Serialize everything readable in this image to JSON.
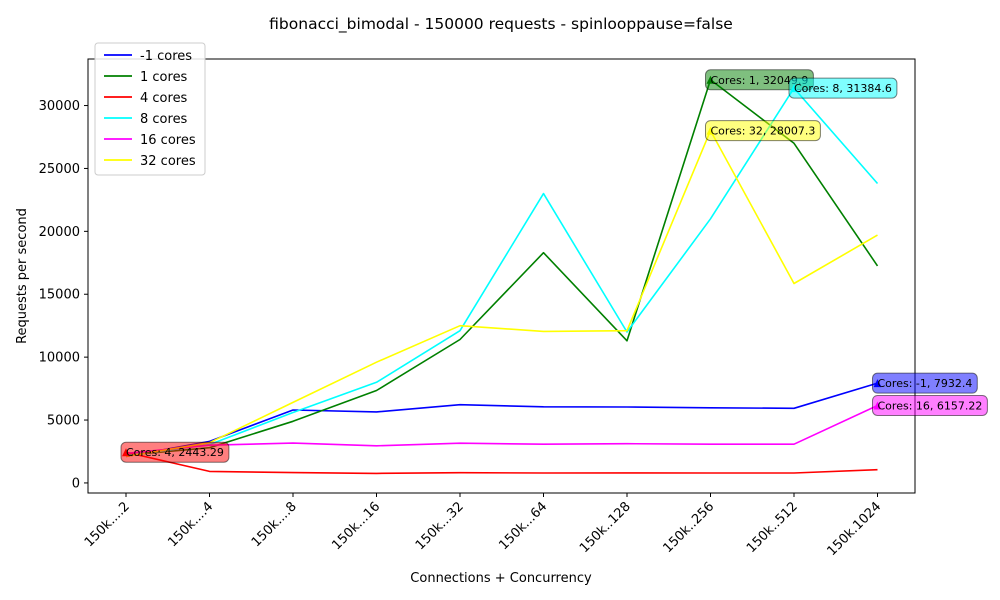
{
  "chart_data": {
    "type": "line",
    "title": "fibonacci_bimodal - 150000 requests - spinlooppause=false",
    "xlabel": "Connections + Concurrency",
    "ylabel": "Requests per second",
    "categories": [
      "150k....2",
      "150k....4",
      "150k....8",
      "150k...16",
      "150k...32",
      "150k...64",
      "150k..128",
      "150k..256",
      "150k..512",
      "150k.1024"
    ],
    "ylim": [
      -800,
      33700
    ],
    "yticks": [
      0,
      5000,
      10000,
      15000,
      20000,
      25000,
      30000
    ],
    "grid": false,
    "legend_position": "top-left",
    "series": [
      {
        "name": "-1 cores",
        "color": "#0000ff",
        "values": [
          2100,
          3300,
          5800,
          5650,
          6220,
          6050,
          6040,
          5970,
          5930,
          7932.4
        ]
      },
      {
        "name": "1 cores",
        "color": "#008000",
        "values": [
          2200,
          2800,
          4900,
          7350,
          11400,
          18300,
          11300,
          32049.9,
          27000,
          17250
        ]
      },
      {
        "name": "4 cores",
        "color": "#ff0000",
        "values": [
          2443.29,
          920,
          820,
          760,
          810,
          790,
          800,
          790,
          790,
          1050
        ]
      },
      {
        "name": "8 cores",
        "color": "#00ffff",
        "values": [
          2150,
          3050,
          5600,
          8000,
          12100,
          23000,
          12000,
          21000,
          31384.6,
          23800
        ]
      },
      {
        "name": "16 cores",
        "color": "#ff00ff",
        "values": [
          2350,
          3000,
          3170,
          2950,
          3160,
          3080,
          3120,
          3080,
          3080,
          6157.22
        ]
      },
      {
        "name": "32 cores",
        "color": "#ffff00",
        "values": [
          2100,
          3200,
          6400,
          9600,
          12500,
          12050,
          12100,
          28007.3,
          15850,
          19700
        ]
      }
    ],
    "annotations": [
      {
        "text": "Cores: 1, 32049.9",
        "series": 1,
        "point": 7,
        "color": "#008000"
      },
      {
        "text": "Cores: 8, 31384.6",
        "series": 3,
        "point": 8,
        "color": "#00ffff"
      },
      {
        "text": "Cores: 32, 28007.3",
        "series": 5,
        "point": 7,
        "color": "#ffff00"
      },
      {
        "text": "Cores: -1, 7932.4",
        "series": 0,
        "point": 9,
        "color": "#0000ff"
      },
      {
        "text": "Cores: 16, 6157.22",
        "series": 4,
        "point": 9,
        "color": "#ff00ff"
      },
      {
        "text": "Cores: 4, 2443.29",
        "series": 2,
        "point": 0,
        "color": "#ff0000"
      }
    ]
  }
}
